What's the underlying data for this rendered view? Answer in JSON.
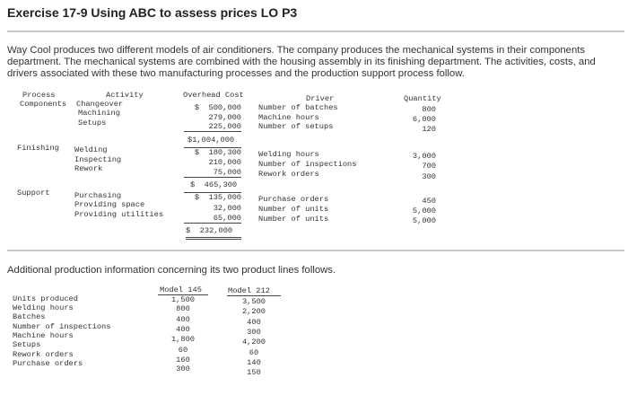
{
  "title": "Exercise 17-9 Using ABC to assess prices LO P3",
  "intro": "Way Cool produces two different models of air conditioners. The company produces the mechanical systems in their components department. The mechanical systems are combined with the housing assembly in its finishing department. The activities, costs, and drivers associated with these two manufacturing processes and the production support process follow.",
  "activity_table": {
    "headers": {
      "process": "Process",
      "activity": "Activity",
      "cost": "Overhead Cost",
      "driver": "Driver",
      "quantity": "Quantity"
    },
    "groups": [
      {
        "process": "Components",
        "activities": [
          "Changeover",
          "Machining",
          "Setups"
        ],
        "costs": [
          "$  500,000",
          "279,000",
          "225,000"
        ],
        "total": "$1,004,000",
        "drivers": [
          "Number of batches",
          "Machine hours",
          "Number of setups"
        ],
        "quantities": [
          "800",
          "6,000",
          "120"
        ]
      },
      {
        "process": "Finishing",
        "activities": [
          "Welding",
          "Inspecting",
          "Rework"
        ],
        "costs": [
          "$  180,300",
          "210,000",
          "75,000"
        ],
        "total": "$  465,300",
        "drivers": [
          "Welding hours",
          "Number of inspections",
          "Rework orders"
        ],
        "quantities": [
          "3,000",
          "700",
          "300"
        ]
      },
      {
        "process": "Support",
        "activities": [
          "Purchasing",
          "Providing space",
          "Providing utilities"
        ],
        "costs": [
          "$  135,000",
          "32,000",
          "65,000"
        ],
        "total": "$  232,000",
        "drivers": [
          "Purchase orders",
          "Number of units",
          "Number of units"
        ],
        "quantities": [
          "450",
          "5,000",
          "5,000"
        ]
      }
    ]
  },
  "additional_text": "Additional production information concerning its two product lines follows.",
  "product_table": {
    "headers": [
      "Model 145",
      "Model 212"
    ],
    "rows": [
      {
        "label": "Units produced",
        "m145": "1,500",
        "m212": "3,500"
      },
      {
        "label": "Welding hours",
        "m145": "800",
        "m212": "2,200"
      },
      {
        "label": "Batches",
        "m145": "400",
        "m212": "400"
      },
      {
        "label": "Number of inspections",
        "m145": "400",
        "m212": "300"
      },
      {
        "label": "Machine hours",
        "m145": "1,800",
        "m212": "4,200"
      },
      {
        "label": "Setups",
        "m145": "60",
        "m212": "60"
      },
      {
        "label": "Rework orders",
        "m145": "160",
        "m212": "140"
      },
      {
        "label": "Purchase orders",
        "m145": "300",
        "m212": "150"
      }
    ]
  }
}
